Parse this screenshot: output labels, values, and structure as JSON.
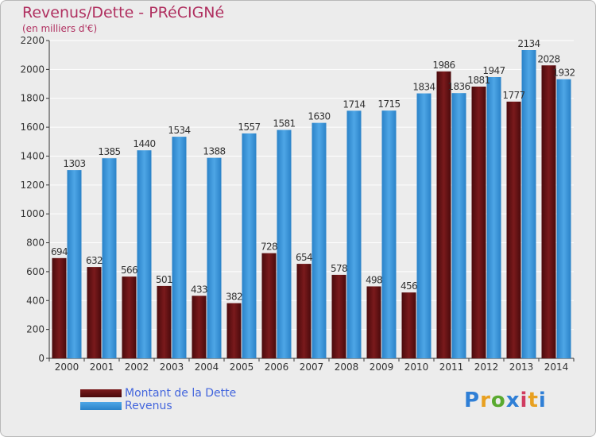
{
  "title": "Revenus/Dette - PRéCIGNé",
  "subtitle": "(en milliers d'€)",
  "logo": {
    "text": "Proxiti",
    "letter_colors": [
      "#2f7fd6",
      "#e8a020",
      "#5aaa30",
      "#2f7fd6",
      "#d03c60",
      "#e8a020",
      "#2f7fd6"
    ]
  },
  "colors": {
    "background": "#ececec",
    "grid": "#ffffff",
    "axis": "#333333",
    "debt": "#7a1a1c",
    "debt_dark": "#4a0a0c",
    "revenue": "#4ea6e6",
    "revenue_dark": "#2a82c8"
  },
  "chart_data": {
    "type": "bar",
    "title": "Revenus/Dette - PRéCIGNé",
    "subtitle": "(en milliers d'€)",
    "categories": [
      "2000",
      "2001",
      "2002",
      "2003",
      "2004",
      "2005",
      "2006",
      "2007",
      "2008",
      "2009",
      "2010",
      "2011",
      "2012",
      "2013",
      "2014"
    ],
    "series": [
      {
        "name": "Montant de la Dette",
        "color": "#7a1a1c",
        "values": [
          694,
          632,
          566,
          501,
          433,
          382,
          728,
          654,
          578,
          498,
          456,
          1986,
          1881,
          1777,
          2028
        ]
      },
      {
        "name": "Revenus",
        "color": "#4ea6e6",
        "values": [
          1303,
          1385,
          1440,
          1534,
          1388,
          1557,
          1581,
          1630,
          1714,
          1715,
          1834,
          1836,
          1947,
          2134,
          1932
        ]
      }
    ],
    "ylim": [
      0,
      2200
    ],
    "yticks": [
      0,
      200,
      400,
      600,
      800,
      1000,
      1200,
      1400,
      1600,
      1800,
      2000,
      2200
    ],
    "grid": true,
    "legend_position": "bottom-left"
  }
}
